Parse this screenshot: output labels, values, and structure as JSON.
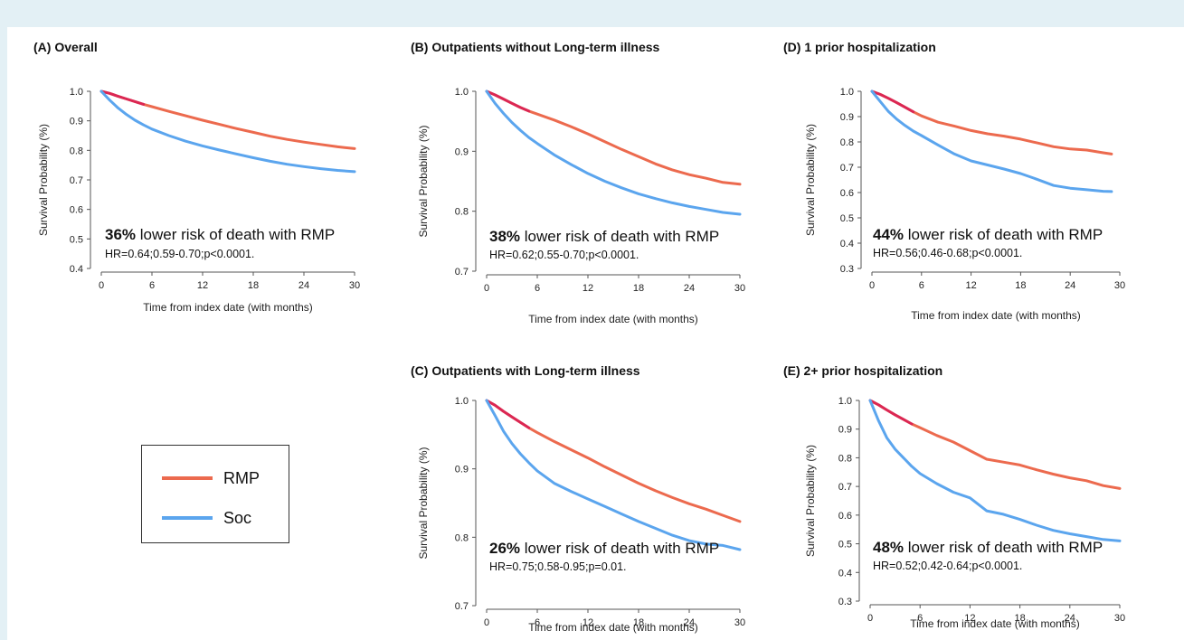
{
  "colors": {
    "rmp": "#ec6a4e",
    "rmp_early": "#d81b55",
    "soc": "#5ba5ee",
    "axis": "#555555",
    "background": "#e3f0f5"
  },
  "legend": {
    "rmp": "RMP",
    "soc": "Soc"
  },
  "chart_data": [
    {
      "type": "line",
      "id": "A",
      "title": "(A) Overall",
      "xlabel": "Time from index date (with months)",
      "ylabel": "Survival Probability (%)",
      "xlim": [
        0,
        30
      ],
      "ylim": [
        0.4,
        1.0
      ],
      "xticks": [
        0,
        6,
        12,
        18,
        24,
        30
      ],
      "yticks": [
        0.4,
        0.5,
        0.6,
        0.7,
        0.8,
        0.9,
        1.0
      ],
      "series": [
        {
          "name": "RMP",
          "x": [
            0,
            1,
            2,
            3,
            4,
            5,
            6,
            8,
            10,
            12,
            14,
            16,
            18,
            20,
            22,
            24,
            26,
            28,
            30
          ],
          "y": [
            1.0,
            0.993,
            0.983,
            0.974,
            0.965,
            0.956,
            0.948,
            0.932,
            0.917,
            0.902,
            0.888,
            0.874,
            0.861,
            0.848,
            0.837,
            0.828,
            0.82,
            0.812,
            0.806
          ]
        },
        {
          "name": "Soc",
          "x": [
            0,
            1,
            2,
            3,
            4,
            5,
            6,
            8,
            10,
            12,
            14,
            16,
            18,
            20,
            22,
            24,
            26,
            28,
            30
          ],
          "y": [
            1.0,
            0.97,
            0.943,
            0.921,
            0.902,
            0.886,
            0.872,
            0.85,
            0.831,
            0.815,
            0.801,
            0.788,
            0.775,
            0.763,
            0.753,
            0.745,
            0.738,
            0.732,
            0.728
          ]
        }
      ],
      "annotation": {
        "highlight": "36%",
        "text": " lower risk of death with RMP",
        "stats": "HR=0.64;0.59-0.70;p<0.0001."
      }
    },
    {
      "type": "line",
      "id": "B",
      "title": "(B)  Outpatients without Long-term illness",
      "xlabel": "Time from index date (with months)",
      "ylabel": "Survival Probability (%)",
      "xlim": [
        0,
        30
      ],
      "ylim": [
        0.7,
        1.0
      ],
      "xticks": [
        0,
        6,
        12,
        18,
        24,
        30
      ],
      "yticks": [
        0.7,
        0.8,
        0.9,
        1.0
      ],
      "series": [
        {
          "name": "RMP",
          "x": [
            0,
            1,
            2,
            3,
            4,
            5,
            6,
            8,
            10,
            12,
            14,
            16,
            18,
            20,
            22,
            24,
            26,
            28,
            30
          ],
          "y": [
            1.0,
            0.994,
            0.987,
            0.98,
            0.973,
            0.967,
            0.962,
            0.952,
            0.941,
            0.929,
            0.916,
            0.903,
            0.891,
            0.879,
            0.869,
            0.861,
            0.855,
            0.848,
            0.845
          ]
        },
        {
          "name": "Soc",
          "x": [
            0,
            1,
            2,
            3,
            4,
            5,
            6,
            8,
            10,
            12,
            14,
            16,
            18,
            20,
            22,
            24,
            26,
            28,
            30
          ],
          "y": [
            1.0,
            0.98,
            0.963,
            0.948,
            0.935,
            0.923,
            0.913,
            0.894,
            0.878,
            0.863,
            0.85,
            0.839,
            0.829,
            0.821,
            0.814,
            0.808,
            0.803,
            0.798,
            0.795
          ]
        }
      ],
      "annotation": {
        "highlight": "38%",
        "text": " lower risk of death with RMP",
        "stats": "HR=0.62;0.55-0.70;p<0.0001."
      }
    },
    {
      "type": "line",
      "id": "C",
      "title": "(C)  Outpatients with Long-term illness",
      "xlabel": "Time from index date (with months)",
      "ylabel": "Survival Probability (%)",
      "xlim": [
        0,
        30
      ],
      "ylim": [
        0.7,
        1.0
      ],
      "xticks": [
        0,
        6,
        12,
        18,
        24,
        30
      ],
      "yticks": [
        0.7,
        0.8,
        0.9,
        1.0
      ],
      "series": [
        {
          "name": "RMP",
          "x": [
            0,
            1,
            2,
            3,
            4,
            5,
            6,
            8,
            10,
            12,
            14,
            16,
            18,
            20,
            22,
            24,
            26,
            28,
            30
          ],
          "y": [
            1.0,
            0.993,
            0.984,
            0.976,
            0.968,
            0.96,
            0.953,
            0.94,
            0.928,
            0.916,
            0.903,
            0.891,
            0.879,
            0.868,
            0.858,
            0.849,
            0.841,
            0.832,
            0.823
          ]
        },
        {
          "name": "Soc",
          "x": [
            0,
            1,
            2,
            3,
            4,
            5,
            6,
            8,
            10,
            12,
            14,
            16,
            18,
            20,
            22,
            24,
            26,
            28,
            30
          ],
          "y": [
            1.0,
            0.978,
            0.955,
            0.937,
            0.922,
            0.909,
            0.897,
            0.879,
            0.867,
            0.856,
            0.845,
            0.834,
            0.823,
            0.813,
            0.803,
            0.795,
            0.79,
            0.788,
            0.782
          ]
        }
      ],
      "annotation": {
        "highlight": "26%",
        "text": " lower risk of death with RMP",
        "stats": "HR=0.75;0.58-0.95;p=0.01."
      }
    },
    {
      "type": "line",
      "id": "D",
      "title": "(D)  1 prior hospitalization",
      "xlabel": "Time from index date (with months)",
      "ylabel": "Survival Probability (%)",
      "xlim": [
        0,
        30
      ],
      "ylim": [
        0.3,
        1.0
      ],
      "xticks": [
        0,
        6,
        12,
        18,
        24,
        30
      ],
      "yticks": [
        0.3,
        0.4,
        0.5,
        0.6,
        0.7,
        0.8,
        0.9,
        1.0
      ],
      "series": [
        {
          "name": "RMP",
          "x": [
            0,
            1,
            2,
            3,
            4,
            5,
            6,
            8,
            10,
            12,
            14,
            16,
            18,
            20,
            22,
            24,
            26,
            28,
            29
          ],
          "y": [
            1.0,
            0.988,
            0.972,
            0.955,
            0.937,
            0.919,
            0.903,
            0.878,
            0.862,
            0.845,
            0.832,
            0.823,
            0.811,
            0.796,
            0.781,
            0.772,
            0.768,
            0.757,
            0.752
          ]
        },
        {
          "name": "Soc",
          "x": [
            0,
            1,
            2,
            3,
            4,
            5,
            6,
            8,
            10,
            12,
            14,
            16,
            18,
            20,
            22,
            24,
            26,
            28,
            29
          ],
          "y": [
            1.0,
            0.96,
            0.92,
            0.89,
            0.865,
            0.843,
            0.825,
            0.788,
            0.752,
            0.725,
            0.709,
            0.693,
            0.675,
            0.652,
            0.628,
            0.617,
            0.611,
            0.605,
            0.604
          ]
        }
      ],
      "annotation": {
        "highlight": "44%",
        "text": " lower risk of death with RMP",
        "stats": "HR=0.56;0.46-0.68;p<0.0001."
      }
    },
    {
      "type": "line",
      "id": "E",
      "title": "(E)    2+ prior hospitalization",
      "xlabel": "Time from index date (with months)",
      "ylabel": "Survival Probability (%)",
      "xlim": [
        0,
        30
      ],
      "ylim": [
        0.3,
        1.0
      ],
      "xticks": [
        0,
        6,
        12,
        18,
        24,
        30
      ],
      "yticks": [
        0.3,
        0.4,
        0.5,
        0.6,
        0.7,
        0.8,
        0.9,
        1.0
      ],
      "series": [
        {
          "name": "RMP",
          "x": [
            0,
            1,
            2,
            3,
            4,
            5,
            6,
            8,
            10,
            12,
            14,
            16,
            18,
            20,
            22,
            24,
            26,
            28,
            30
          ],
          "y": [
            1.0,
            0.985,
            0.967,
            0.95,
            0.934,
            0.918,
            0.905,
            0.878,
            0.855,
            0.825,
            0.795,
            0.785,
            0.775,
            0.758,
            0.743,
            0.73,
            0.72,
            0.703,
            0.693
          ]
        },
        {
          "name": "Soc",
          "x": [
            0,
            1,
            2,
            3,
            4,
            5,
            6,
            8,
            10,
            12,
            14,
            16,
            18,
            20,
            22,
            24,
            26,
            28,
            30
          ],
          "y": [
            1.0,
            0.93,
            0.87,
            0.83,
            0.8,
            0.77,
            0.745,
            0.71,
            0.68,
            0.66,
            0.615,
            0.603,
            0.585,
            0.565,
            0.547,
            0.535,
            0.525,
            0.515,
            0.51
          ]
        }
      ],
      "annotation": {
        "highlight": "48%",
        "text": " lower risk of death with RMP",
        "stats": "HR=0.52;0.42-0.64;p<0.0001."
      }
    }
  ]
}
